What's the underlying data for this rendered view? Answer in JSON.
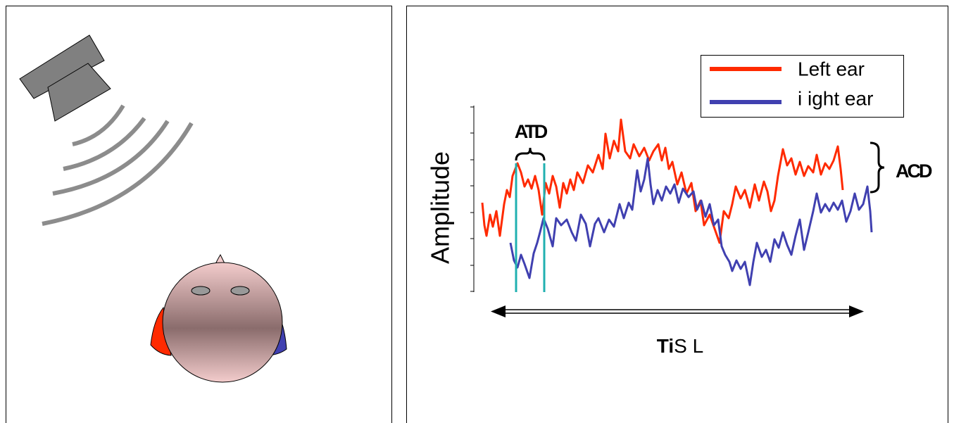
{
  "legend": {
    "left": "Left ear",
    "right": "i ight ear"
  },
  "y_axis_label": "Amplitude",
  "atd_label": "ATD",
  "acd_label": "ACD",
  "time_label": {
    "bold": "Ti",
    "rest": "S L"
  }
}
